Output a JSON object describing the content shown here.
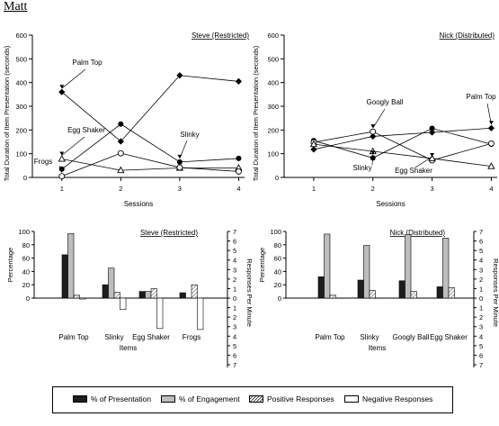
{
  "page_title": "Matt",
  "legend": {
    "presentation": "% of Presentation",
    "engagement": "% of Engagement",
    "positive": "Positive Responses",
    "negative": "Negative Responses"
  },
  "colors": {
    "presentation": "#1e1e1e",
    "engagement": "#bdbdbd",
    "positive": "hatched",
    "negative": "#ffffff"
  },
  "chart_data": [
    {
      "type": "line",
      "title": "Steve (Restricted)",
      "xlabel": "Sessions",
      "ylabel": "Total Duration of Item Presentation (seconds)",
      "x": [
        1,
        2,
        3,
        4
      ],
      "xlim": [
        0.5,
        4.1
      ],
      "ylim": [
        0,
        600
      ],
      "yticks": [
        0,
        100,
        200,
        300,
        400,
        500,
        600
      ],
      "series": [
        {
          "name": "Palm Top",
          "marker": "diamond",
          "values": [
            360,
            152,
            430,
            405
          ]
        },
        {
          "name": "Slinky",
          "marker": "circle",
          "values": [
            35,
            225,
            65,
            80
          ]
        },
        {
          "name": "Egg Shaker",
          "marker": "triangle",
          "values": [
            78,
            30,
            40,
            40
          ]
        },
        {
          "name": "Frogs",
          "marker": "open-circle",
          "values": [
            5,
            102,
            42,
            25
          ]
        }
      ],
      "annotations": [
        "Palm Top",
        "Egg Shaker",
        "Frogs",
        "Slinky"
      ]
    },
    {
      "type": "line",
      "title": "Nick (Distributed)",
      "xlabel": "Sessions",
      "ylabel": "Total Duration of Item Presentation (seconds)",
      "x": [
        1,
        2,
        3,
        4
      ],
      "xlim": [
        0.5,
        4.1
      ],
      "ylim": [
        0,
        600
      ],
      "yticks": [
        0,
        100,
        200,
        300,
        400,
        500,
        600
      ],
      "series": [
        {
          "name": "Palm Top",
          "marker": "diamond",
          "values": [
            118,
            173,
            190,
            208
          ]
        },
        {
          "name": "Slinky",
          "marker": "circle",
          "values": [
            155,
            82,
            207,
            140
          ]
        },
        {
          "name": "Googly Ball",
          "marker": "open-circle",
          "values": [
            148,
            193,
            72,
            143
          ]
        },
        {
          "name": "Egg Shaker",
          "marker": "triangle",
          "values": [
            140,
            110,
            80,
            47
          ]
        }
      ],
      "annotations": [
        "Googly Ball",
        "Palm Top",
        "Slinky",
        "Egg Shaker"
      ]
    },
    {
      "type": "bar",
      "title": "Steve (Restricted)",
      "xlabel": "Items",
      "ylabel": "Percentage",
      "ylabel_right": "Responses Per Minute",
      "categories": [
        "Palm Top",
        "Slinky",
        "Egg Shaker",
        "Frogs"
      ],
      "ylim": [
        0,
        100
      ],
      "yticks": [
        0,
        20,
        40,
        60,
        80,
        100
      ],
      "right_ticks": [
        "7",
        "6",
        "5",
        "4",
        "3",
        "2",
        "1",
        "0",
        "1",
        "2",
        "3",
        "4",
        "5",
        "6",
        "7"
      ],
      "series": [
        {
          "name": "% of Presentation",
          "axis": "left",
          "values": [
            65,
            20,
            10,
            8
          ]
        },
        {
          "name": "% of Engagement",
          "axis": "left",
          "values": [
            97,
            45,
            10,
            0
          ]
        },
        {
          "name": "Positive Responses",
          "axis": "right",
          "values": [
            0.3,
            0.6,
            1.0,
            1.4
          ]
        },
        {
          "name": "Negative Responses",
          "axis": "right",
          "values": [
            -0.1,
            -1.2,
            -3.2,
            -3.3
          ]
        }
      ]
    },
    {
      "type": "bar",
      "title": "Nick (Distributed)",
      "xlabel": "Items",
      "ylabel": "Percentage",
      "ylabel_right": "Responses Per Minute",
      "categories": [
        "Palm Top",
        "Slinky",
        "Googly Ball",
        "Egg Shaker"
      ],
      "ylim": [
        0,
        100
      ],
      "yticks": [
        0,
        20,
        40,
        60,
        80,
        100
      ],
      "right_ticks": [
        "7",
        "6",
        "5",
        "4",
        "3",
        "2",
        "1",
        "0",
        "1",
        "2",
        "3",
        "4",
        "5",
        "6",
        "7"
      ],
      "series": [
        {
          "name": "% of Presentation",
          "axis": "left",
          "values": [
            32,
            27,
            26,
            17
          ]
        },
        {
          "name": "% of Engagement",
          "axis": "left",
          "values": [
            96,
            79,
            95,
            90
          ]
        },
        {
          "name": "Positive Responses",
          "axis": "right",
          "values": [
            0.3,
            0.8,
            0.7,
            1.1
          ]
        },
        {
          "name": "Negative Responses",
          "axis": "right",
          "values": [
            0,
            0,
            0,
            0
          ]
        }
      ]
    }
  ]
}
